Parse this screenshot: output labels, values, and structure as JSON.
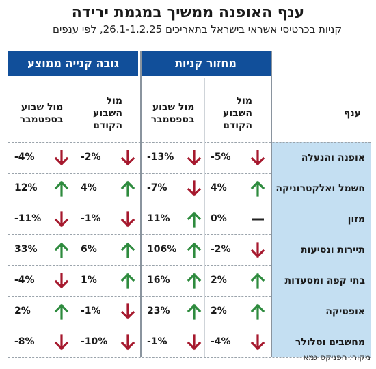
{
  "title": "ענף האופנה ממשיך במגמת ירידה",
  "subtitle": "קניות בכרטיסי אשראי בישראל בתאריכים 26.1-1.2.25, לפי ענפים",
  "source": "מקור: הפניקס גמא",
  "colors": {
    "header": "#114f9a",
    "branch_bg": "#c4dff2",
    "up": "#2e8b3e",
    "down": "#a6192e",
    "flat": "#222222"
  },
  "chart_data": {
    "type": "table",
    "groups": [
      {
        "label": "מחזור קניות",
        "columns": [
          "מול\nהשבוע\nהקודם",
          "מול שבוע\nבספטמבר"
        ]
      },
      {
        "label": "גובה קנייה ממוצע",
        "columns": [
          "מול\nהשבוע\nהקודם",
          "מול שבוע\nבספטמבר"
        ]
      }
    ],
    "branch_header": "ענף",
    "rows": [
      {
        "branch": "אופנה והנעלה",
        "cells": [
          {
            "text": "-5%",
            "dir": "down"
          },
          {
            "text": "-13%",
            "dir": "down"
          },
          {
            "text": "-2%",
            "dir": "down"
          },
          {
            "text": "-4%",
            "dir": "down"
          }
        ]
      },
      {
        "branch": "חשמל ואלקטרוניקה",
        "cells": [
          {
            "text": "4%",
            "dir": "up"
          },
          {
            "text": "-7%",
            "dir": "down"
          },
          {
            "text": "4%",
            "dir": "up"
          },
          {
            "text": "12%",
            "dir": "up"
          }
        ]
      },
      {
        "branch": "מזון",
        "cells": [
          {
            "text": "0%",
            "dir": "flat"
          },
          {
            "text": "11%",
            "dir": "up"
          },
          {
            "text": "-1%",
            "dir": "down"
          },
          {
            "text": "-11%",
            "dir": "down"
          }
        ]
      },
      {
        "branch": "תיירות ונסיעות",
        "cells": [
          {
            "text": "-2%",
            "dir": "down"
          },
          {
            "text": "106%",
            "dir": "up"
          },
          {
            "text": "6%",
            "dir": "up"
          },
          {
            "text": "33%",
            "dir": "up"
          }
        ]
      },
      {
        "branch": "בתי קפה ומסעדות",
        "cells": [
          {
            "text": "2%",
            "dir": "up"
          },
          {
            "text": "16%",
            "dir": "up"
          },
          {
            "text": "1%",
            "dir": "up"
          },
          {
            "text": "-4%",
            "dir": "down"
          }
        ]
      },
      {
        "branch": "אופטיקה",
        "cells": [
          {
            "text": "2%",
            "dir": "up"
          },
          {
            "text": "23%",
            "dir": "up"
          },
          {
            "text": "-1%",
            "dir": "down"
          },
          {
            "text": "2%",
            "dir": "up"
          }
        ]
      },
      {
        "branch": "מחשבים וסלולר",
        "cells": [
          {
            "text": "-4%",
            "dir": "down"
          },
          {
            "text": "-1%",
            "dir": "down"
          },
          {
            "text": "-10%",
            "dir": "down"
          },
          {
            "text": "-8%",
            "dir": "down"
          }
        ]
      }
    ]
  }
}
